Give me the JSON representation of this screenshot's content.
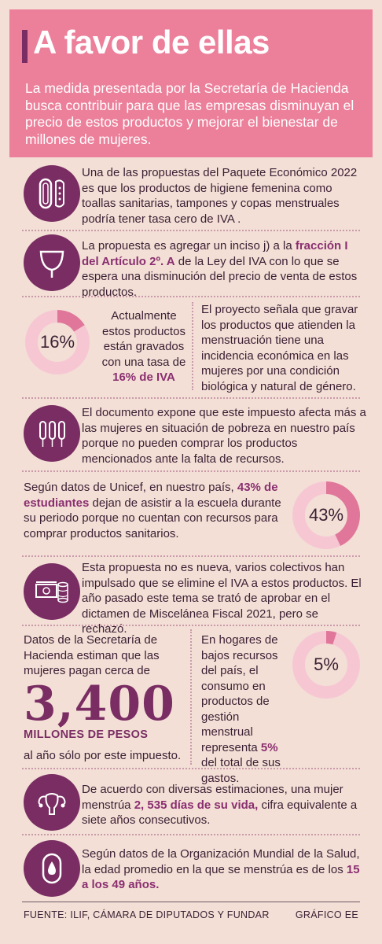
{
  "header": {
    "title": "A favor de ellas",
    "intro": "La medida presentada por la Secretaría de Hacienda busca contribuir para que las empresas disminuyan el precio de estos productos y mejorar el bienestar de millones de mujeres."
  },
  "colors": {
    "background": "#f3dfd6",
    "header_pink": "#ec7f9a",
    "purple": "#7a2d63",
    "donut_pink": "#e0779a",
    "donut_track": "#f6c7d3"
  },
  "sections": {
    "s1": {
      "icon": "sanitary-pad-icon",
      "text": "Una de las propuestas del Paquete Económico 2022 es que los productos de higiene femenina como toallas sanitarias, tampones y copas menstruales podría tener tasa cero de IVA ."
    },
    "s2": {
      "icon": "menstrual-cup-icon",
      "text_before": "La propuesta es agregar un inciso j) a la ",
      "highlight": "fracción I del Artículo 2º. A",
      "text_after": " de la Ley del IVA con lo que se espera una disminución del precio de venta de estos productos."
    },
    "s3": {
      "donut_value": "16%",
      "donut_fraction": 0.16,
      "left_text": "Actualmente estos productos están gravados con una tasa de ",
      "left_highlight": "16% de IVA",
      "right_text": "El proyecto señala que gravar los productos que atienden la menstruación tiene una incidencia económica en las mujeres por una condición biológica y natural de género."
    },
    "s4": {
      "icon": "tampons-icon",
      "text": "El documento expone que este impuesto afecta más a las mujeres en situación de pobreza en nuestro país porque no pueden comprar los productos mencionados ante la falta de recursos."
    },
    "s5": {
      "text_before": "Según datos de Unicef, en nuestro país, ",
      "highlight": "43% de estudiantes",
      "text_after": " dejan de asistir a la escuela durante su periodo porque no cuentan con recursos para comprar productos sanitarios.",
      "donut_value": "43%",
      "donut_fraction": 0.43
    },
    "s6": {
      "icon": "money-icon",
      "text": "Esta propuesta no es nueva, varios colectivos han impulsado que se elimine el IVA a estos productos. El año pasado este tema se trató de aprobar en el dictamen de Miscelánea Fiscal 2021, pero se rechazó."
    },
    "s7": {
      "left_text": "Datos de la Secretaría de Hacienda estiman que las mujeres pagan cerca de",
      "big_number": "3,400",
      "big_unit": "MILLONES DE PESOS",
      "left_tail": "al año sólo por este impuesto.",
      "right_text_before": "En hogares de bajos recursos del país, el consumo en productos de gestión menstrual representa ",
      "right_highlight": "5%",
      "right_text_after": " del total de sus gastos.",
      "donut_value": "5%",
      "donut_fraction": 0.05
    },
    "s8": {
      "icon": "uterus-icon",
      "text_before": "De acuerdo con diversas estimaciones, una mujer menstrúa ",
      "highlight": "2, 535 días de su vida,",
      "text_after": " cifra equivalente a siete años consecutivos."
    },
    "s9": {
      "icon": "pad-drop-icon",
      "text_before": "Según datos de la Organización Mundial de la Salud, la edad promedio en la que se menstrúa es de los ",
      "highlight": "15 a los 49 años."
    }
  },
  "footer": {
    "source": "FUENTE: ILIF, CÁMARA DE DIPUTADOS Y FUNDAR",
    "credit": "GRÁFICO EE"
  }
}
